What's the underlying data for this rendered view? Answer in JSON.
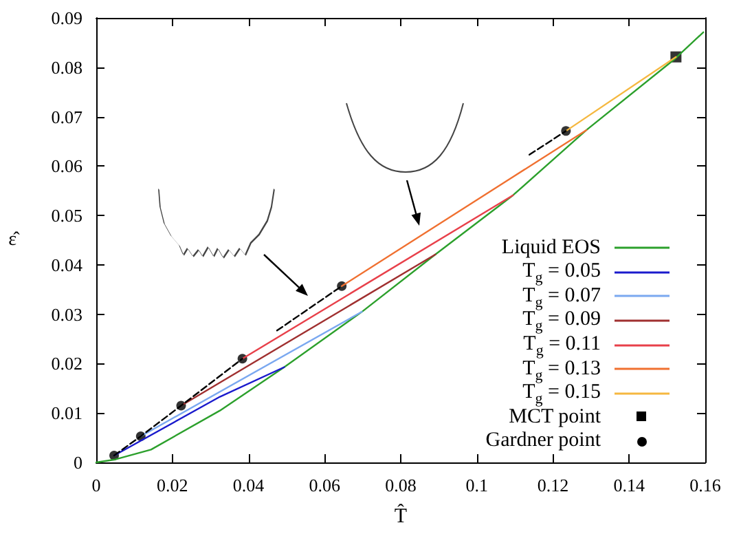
{
  "chart_data": {
    "type": "line",
    "xlabel": "T̂",
    "ylabel": "ε̂",
    "xlim": [
      0,
      0.16
    ],
    "xticks": [
      0,
      0.02,
      0.04,
      0.06,
      0.08,
      0.1,
      0.12,
      0.14,
      0.16
    ],
    "ylim": [
      0,
      0.09
    ],
    "yticks": [
      0,
      0.01,
      0.02,
      0.03,
      0.04,
      0.05,
      0.06,
      0.07,
      0.08,
      0.09
    ],
    "grid": false,
    "legend": "bottom right",
    "marker": "none",
    "line_style": "solid",
    "series": [
      {
        "name": "Liquid EOS",
        "color": "#2ca02c",
        "x": [
          0,
          0.005,
          0.0144,
          0.0325,
          0.0494,
          0.0698,
          0.0891,
          0.1095,
          0.1288,
          0.1517,
          0.1595
        ],
        "values": [
          0,
          0.0006,
          0.0026,
          0.0105,
          0.0193,
          0.0305,
          0.0421,
          0.0541,
          0.0673,
          0.0815,
          0.0871
        ]
      },
      {
        "name": "T$_{g}$ = 0.05",
        "color": "#1a1acc",
        "x": [
          0.0047,
          0.0325,
          0.0494
        ],
        "values": [
          0.0014,
          0.0133,
          0.0193
        ]
      },
      {
        "name": "T$_{g}$ = 0.07",
        "color": "#7aa8f0",
        "x": [
          0.0117,
          0.0698
        ],
        "values": [
          0.0053,
          0.0305
        ]
      },
      {
        "name": "T$_{g}$ = 0.09",
        "color": "#a03030",
        "x": [
          0.0223,
          0.0891
        ],
        "values": [
          0.0115,
          0.0421
        ]
      },
      {
        "name": "T$_{g}$ = 0.11",
        "color": "#e8404a",
        "x": [
          0.0384,
          0.1095
        ],
        "values": [
          0.021,
          0.0541
        ]
      },
      {
        "name": "T$_{g}$ = 0.13",
        "color": "#f07030",
        "x": [
          0.0645,
          0.1288
        ],
        "values": [
          0.0357,
          0.0673
        ]
      },
      {
        "name": "T$_{g}$ = 0.15",
        "color": "#f5b840",
        "x": [
          0.1234,
          0.1523
        ],
        "values": [
          0.0671,
          0.0821
        ]
      },
      {
        "color": "#000000",
        "line_style": "dashed",
        "x": [
          0.0047,
          0.0117,
          0.0223,
          0.0384,
          null,
          0.0475,
          0.0645,
          null,
          0.1138,
          0.1234
        ],
        "values": [
          0.0014,
          0.0053,
          0.0115,
          0.021,
          null,
          0.0267,
          0.0357,
          null,
          0.0623,
          0.0671
        ]
      },
      {
        "name": "MCT point",
        "type": "scatter",
        "marker": "square",
        "color": "#000000",
        "x": [
          0.1523
        ],
        "values": [
          0.0821
        ]
      },
      {
        "name": "Gardner point",
        "type": "scatter",
        "marker": "circle",
        "color": "#000000",
        "x": [
          0.0047,
          0.0117,
          0.0223,
          0.0384,
          0.0645,
          0.1234
        ],
        "values": [
          0.0014,
          0.0053,
          0.0115,
          0.021,
          0.0357,
          0.0671
        ]
      }
    ]
  }
}
